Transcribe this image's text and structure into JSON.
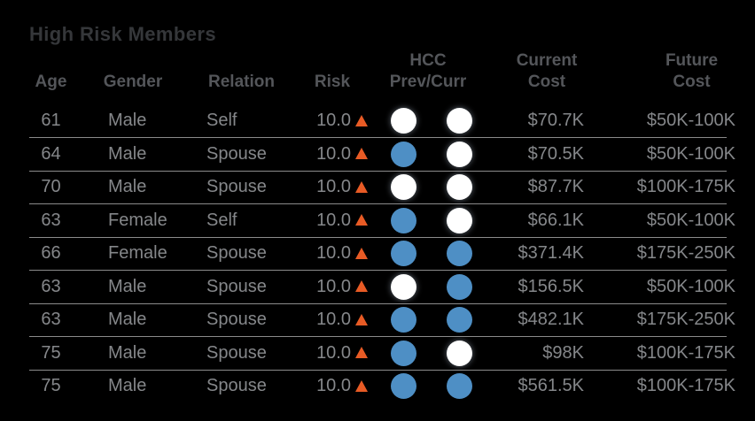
{
  "title": "High Risk Members",
  "colors": {
    "background": "#000000",
    "title_text": "#35373a",
    "header_text": "#54565a",
    "row_text": "#85878a",
    "divider": "#8b8b8b",
    "risk_up_arrow": "#e85b25",
    "hcc_blue": "#4e8fc5",
    "hcc_white": "#ffffff"
  },
  "table": {
    "headers": {
      "age": "Age",
      "gender": "Gender",
      "relation": "Relation",
      "risk": "Risk",
      "hcc": "HCC\nPrev/Curr",
      "current": "Current\nCost",
      "future": "Future\nCost"
    },
    "rows": [
      {
        "age": "61",
        "gender": "Male",
        "relation": "Self",
        "risk": "10.0",
        "risk_trend": "up",
        "hcc_prev": "white",
        "hcc_curr": "white",
        "current_cost": "$70.7K",
        "future_cost": "$50K-100K"
      },
      {
        "age": "64",
        "gender": "Male",
        "relation": "Spouse",
        "risk": "10.0",
        "risk_trend": "up",
        "hcc_prev": "blue",
        "hcc_curr": "white",
        "current_cost": "$70.5K",
        "future_cost": "$50K-100K"
      },
      {
        "age": "70",
        "gender": "Male",
        "relation": "Spouse",
        "risk": "10.0",
        "risk_trend": "up",
        "hcc_prev": "white",
        "hcc_curr": "white",
        "current_cost": "$87.7K",
        "future_cost": "$100K-175K"
      },
      {
        "age": "63",
        "gender": "Female",
        "relation": "Self",
        "risk": "10.0",
        "risk_trend": "up",
        "hcc_prev": "blue",
        "hcc_curr": "white",
        "current_cost": "$66.1K",
        "future_cost": "$50K-100K"
      },
      {
        "age": "66",
        "gender": "Female",
        "relation": "Spouse",
        "risk": "10.0",
        "risk_trend": "up",
        "hcc_prev": "blue",
        "hcc_curr": "blue",
        "current_cost": "$371.4K",
        "future_cost": "$175K-250K"
      },
      {
        "age": "63",
        "gender": "Male",
        "relation": "Spouse",
        "risk": "10.0",
        "risk_trend": "up",
        "hcc_prev": "white",
        "hcc_curr": "blue",
        "current_cost": "$156.5K",
        "future_cost": "$50K-100K"
      },
      {
        "age": "63",
        "gender": "Male",
        "relation": "Spouse",
        "risk": "10.0",
        "risk_trend": "up",
        "hcc_prev": "blue",
        "hcc_curr": "blue",
        "current_cost": "$482.1K",
        "future_cost": "$175K-250K"
      },
      {
        "age": "75",
        "gender": "Male",
        "relation": "Spouse",
        "risk": "10.0",
        "risk_trend": "up",
        "hcc_prev": "blue",
        "hcc_curr": "white",
        "current_cost": "$98K",
        "future_cost": "$100K-175K"
      },
      {
        "age": "75",
        "gender": "Male",
        "relation": "Spouse",
        "risk": "10.0",
        "risk_trend": "up",
        "hcc_prev": "blue",
        "hcc_curr": "blue",
        "current_cost": "$561.5K",
        "future_cost": "$100K-175K"
      }
    ]
  },
  "chart_data": {
    "type": "table",
    "title": "High Risk Members",
    "columns": [
      "Age",
      "Gender",
      "Relation",
      "Risk",
      "HCC Prev",
      "HCC Curr",
      "Current Cost",
      "Future Cost"
    ],
    "rows": [
      [
        61,
        "Male",
        "Self",
        "10.0 ▲",
        "white",
        "white",
        "$70.7K",
        "$50K-100K"
      ],
      [
        64,
        "Male",
        "Spouse",
        "10.0 ▲",
        "blue",
        "white",
        "$70.5K",
        "$50K-100K"
      ],
      [
        70,
        "Male",
        "Spouse",
        "10.0 ▲",
        "white",
        "white",
        "$87.7K",
        "$100K-175K"
      ],
      [
        63,
        "Female",
        "Self",
        "10.0 ▲",
        "blue",
        "white",
        "$66.1K",
        "$50K-100K"
      ],
      [
        66,
        "Female",
        "Spouse",
        "10.0 ▲",
        "blue",
        "blue",
        "$371.4K",
        "$175K-250K"
      ],
      [
        63,
        "Male",
        "Spouse",
        "10.0 ▲",
        "white",
        "blue",
        "$156.5K",
        "$50K-100K"
      ],
      [
        63,
        "Male",
        "Spouse",
        "10.0 ▲",
        "blue",
        "blue",
        "$482.1K",
        "$175K-250K"
      ],
      [
        75,
        "Male",
        "Spouse",
        "10.0 ▲",
        "blue",
        "white",
        "$98K",
        "$100K-175K"
      ],
      [
        75,
        "Male",
        "Spouse",
        "10.0 ▲",
        "blue",
        "blue",
        "$561.5K",
        "$100K-175K"
      ]
    ],
    "notes": "Risk column shows value 10.0 with orange upward triangle in every row. HCC Prev/Curr rendered as white or blue filled circles."
  }
}
